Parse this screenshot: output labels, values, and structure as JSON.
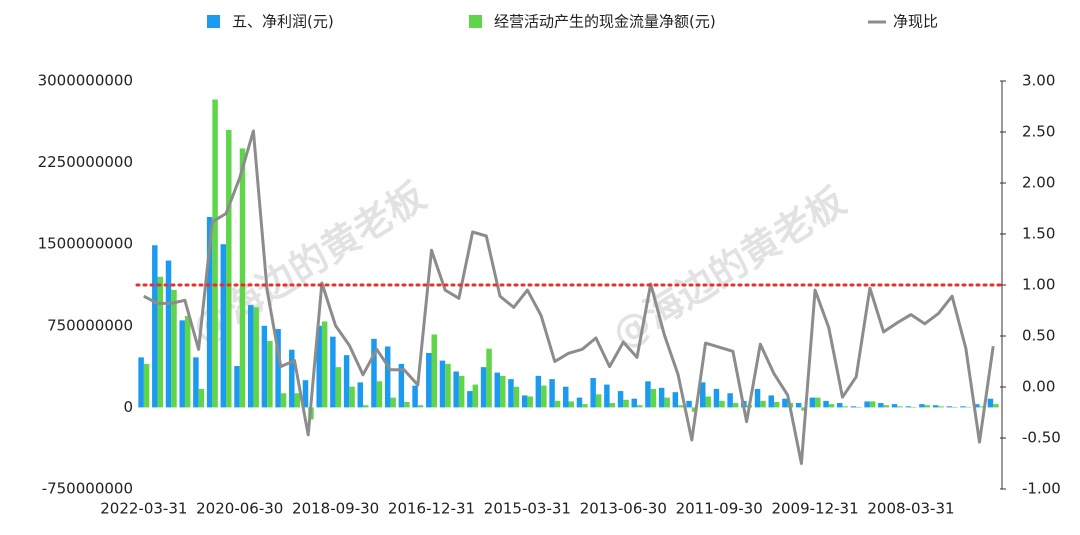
{
  "chart_data": {
    "type": "bar",
    "categories": [
      "2022-03-31",
      null,
      null,
      null,
      null,
      null,
      null,
      "2020-06-30",
      null,
      null,
      null,
      null,
      null,
      null,
      "2018-09-30",
      null,
      null,
      null,
      null,
      null,
      null,
      "2016-12-31",
      null,
      null,
      null,
      null,
      null,
      null,
      "2015-03-31",
      null,
      null,
      null,
      null,
      null,
      null,
      "2013-06-30",
      null,
      null,
      null,
      null,
      null,
      null,
      "2011-09-30",
      null,
      null,
      null,
      null,
      null,
      null,
      "2009-12-31",
      null,
      null,
      null,
      null,
      null,
      null,
      "2008-03-31",
      null,
      null,
      null,
      null,
      null,
      null
    ],
    "series": [
      {
        "name": "五、净利润(元)",
        "type": "bar",
        "color": "#1a9af0",
        "values": [
          460000000,
          1490000000,
          1350000000,
          800000000,
          460000000,
          1750000000,
          1500000000,
          380000000,
          940000000,
          750000000,
          720000000,
          530000000,
          250000000,
          750000000,
          650000000,
          480000000,
          230000000,
          630000000,
          560000000,
          400000000,
          200000000,
          500000000,
          430000000,
          330000000,
          150000000,
          370000000,
          320000000,
          260000000,
          110000000,
          290000000,
          260000000,
          190000000,
          90000000,
          270000000,
          210000000,
          150000000,
          80000000,
          240000000,
          180000000,
          140000000,
          60000000,
          230000000,
          170000000,
          130000000,
          60000000,
          170000000,
          110000000,
          80000000,
          40000000,
          90000000,
          60000000,
          40000000,
          10000000,
          55000000,
          40000000,
          30000000,
          10000000,
          30000000,
          20000000,
          10000000,
          10000000,
          30000000,
          80000000
        ]
      },
      {
        "name": "经营活动产生的现金流量净额(元)",
        "type": "bar",
        "color": "#5fd54a",
        "values": [
          400000000,
          1200000000,
          1080000000,
          840000000,
          170000000,
          2830000000,
          2550000000,
          2380000000,
          920000000,
          610000000,
          130000000,
          130000000,
          -110000000,
          790000000,
          370000000,
          190000000,
          20000000,
          240000000,
          90000000,
          50000000,
          20000000,
          670000000,
          400000000,
          290000000,
          210000000,
          540000000,
          290000000,
          190000000,
          100000000,
          200000000,
          60000000,
          55000000,
          30000000,
          120000000,
          40000000,
          70000000,
          20000000,
          170000000,
          90000000,
          20000000,
          -40000000,
          100000000,
          60000000,
          40000000,
          20000000,
          60000000,
          50000000,
          40000000,
          -30000000,
          90000000,
          30000000,
          10000000,
          0,
          55000000,
          20000000,
          10000000,
          0,
          20000000,
          10000000,
          0,
          5000000,
          10000000,
          30000000
        ]
      },
      {
        "name": "净现比",
        "type": "line",
        "axis": "y2",
        "color": "#8c8c8c",
        "values": [
          0.89,
          0.82,
          0.82,
          0.85,
          0.37,
          1.62,
          1.7,
          2.05,
          2.51,
          0.95,
          0.2,
          0.26,
          -0.47,
          1.02,
          0.6,
          0.41,
          0.12,
          0.37,
          0.17,
          0.17,
          0.02,
          1.34,
          0.95,
          0.87,
          1.52,
          1.48,
          0.89,
          0.78,
          0.95,
          0.7,
          0.25,
          0.33,
          0.37,
          0.48,
          0.2,
          0.44,
          0.29,
          1.01,
          0.51,
          0.12,
          -0.52,
          0.43,
          0.39,
          0.35,
          -0.34,
          0.42,
          0.13,
          -0.08,
          -0.75,
          0.95,
          0.58,
          -0.1,
          0.1,
          0.97,
          0.54,
          0.63,
          0.71,
          0.62,
          0.72,
          0.89,
          0.38,
          -0.54,
          0.4
        ]
      }
    ],
    "ylim": [
      -750000000,
      3000000000
    ],
    "yticks": [
      3000000000,
      2250000000,
      1500000000,
      750000000,
      0,
      -750000000
    ],
    "y2lim": [
      -1,
      3
    ],
    "y2ticks": [
      {
        "value": 3,
        "label": "3.00"
      },
      {
        "value": 2.5,
        "label": "2.50"
      },
      {
        "value": 2,
        "label": "2.00"
      },
      {
        "value": 1.5,
        "label": "1.50"
      },
      {
        "value": 1,
        "label": "1.00"
      },
      {
        "value": 0.5,
        "label": "0.50"
      },
      {
        "value": 0,
        "label": "0.00"
      },
      {
        "value": -0.5,
        "label": "-0.50"
      },
      {
        "value": -1,
        "label": "-1.00"
      }
    ],
    "reference_line": {
      "value": 1,
      "axis": "y2",
      "color": "#e8302a"
    },
    "watermarks": [
      "@海边的黄老板",
      "@海边的黄老板"
    ],
    "grid": false
  }
}
